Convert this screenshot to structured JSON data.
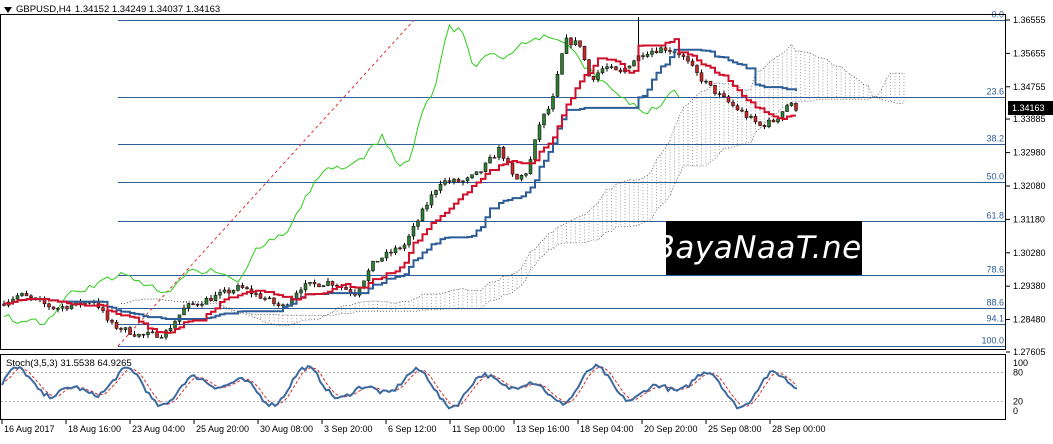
{
  "header": {
    "symbol": "GBPUSD,H4",
    "ohlc": "1.34152 1.34249 1.34037 1.34163"
  },
  "stochastic": {
    "label": "Stoch(3,5,3) 31.5538 64.9265",
    "levels": [
      "100",
      "80",
      "20",
      "0"
    ]
  },
  "price_axis": {
    "labels": [
      "1.36555",
      "1.35655",
      "1.34755",
      "1.33885",
      "1.32980",
      "1.32080",
      "1.31180",
      "1.30280",
      "1.29380",
      "1.28480",
      "1.27605"
    ],
    "last_price": "1.34163"
  },
  "fibonacci": {
    "levels": [
      "0.0",
      "23.6",
      "38.2",
      "50.0",
      "61.8",
      "78.6",
      "88.6",
      "94.1",
      "100.0"
    ]
  },
  "time_axis": {
    "labels": [
      "16 Aug 2017",
      "18 Aug 16:00",
      "23 Aug 04:00",
      "25 Aug 20:00",
      "30 Aug 08:00",
      "3 Sep 20:00",
      "6 Sep 12:00",
      "11 Sep 00:00",
      "13 Sep 16:00",
      "18 Sep 04:00",
      "20 Sep 20:00",
      "25 Sep 08:00",
      "28 Sep 00:00"
    ]
  },
  "watermark": {
    "text": "BayaNaaT.net"
  },
  "colors": {
    "tenkan": "#d0102a",
    "kijun": "#2c5d97",
    "chikou": "#2ecc1a",
    "bull_candle": "#2e7d32",
    "bear_candle": "#c62828",
    "fib": "#2c5d97",
    "trend": "#e03030",
    "stoch_main": "#3b6aa0",
    "stoch_signal": "#d03030"
  },
  "chart_data": {
    "type": "candlestick",
    "symbol": "GBPUSD",
    "timeframe": "H4",
    "ylim": [
      1.27605,
      1.36555
    ],
    "close_path": [
      {
        "t": "16 Aug 2017",
        "close": 1.29
      },
      {
        "t": "18 Aug 16:00",
        "close": 1.2885
      },
      {
        "t": "23 Aug 04:00",
        "close": 1.28
      },
      {
        "t": "25 Aug 20:00",
        "close": 1.2925
      },
      {
        "t": "30 Aug 08:00",
        "close": 1.292
      },
      {
        "t": "3 Sep 20:00",
        "close": 1.295
      },
      {
        "t": "6 Sep 12:00",
        "close": 1.306
      },
      {
        "t": "11 Sep 00:00",
        "close": 1.318
      },
      {
        "t": "13 Sep 16:00",
        "close": 1.337
      },
      {
        "t": "18 Sep 04:00",
        "close": 1.35
      },
      {
        "t": "20 Sep 20:00",
        "close": 1.356
      },
      {
        "t": "25 Sep 08:00",
        "close": 1.343
      },
      {
        "t": "28 Sep 00:00",
        "close": 1.34163
      }
    ],
    "fib_prices": [
      1.3653,
      1.3442,
      1.3312,
      1.3206,
      1.3101,
      1.295,
      1.2861,
      1.2811,
      1.2764
    ]
  }
}
